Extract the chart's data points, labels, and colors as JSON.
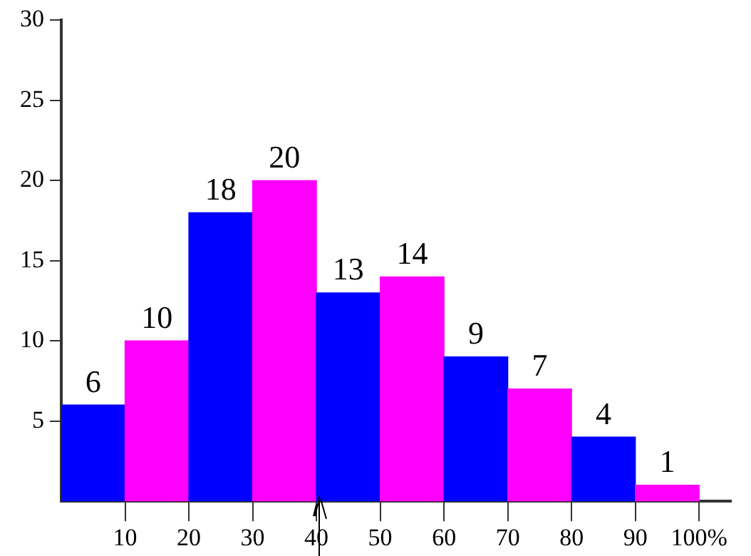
{
  "chart_data": {
    "type": "histogram",
    "bins": [
      0,
      10,
      20,
      30,
      40,
      50,
      60,
      70,
      80,
      90,
      100
    ],
    "values": [
      6,
      10,
      18,
      20,
      13,
      14,
      9,
      7,
      4,
      1
    ],
    "colors": [
      "#0000ff",
      "#ff00ff",
      "#0000ff",
      "#ff00ff",
      "#0000ff",
      "#ff00ff",
      "#0000ff",
      "#ff00ff",
      "#0000ff",
      "#ff00ff"
    ],
    "xlim": [
      0,
      105
    ],
    "xticks": [
      10,
      20,
      30,
      40,
      50,
      60,
      70,
      80,
      90,
      {
        "value": 100,
        "label": "100%"
      }
    ],
    "ylim": [
      0,
      30
    ],
    "yticks": [
      5,
      10,
      15,
      20,
      25,
      30
    ],
    "grid": false,
    "legend": false,
    "data_labels": true
  }
}
